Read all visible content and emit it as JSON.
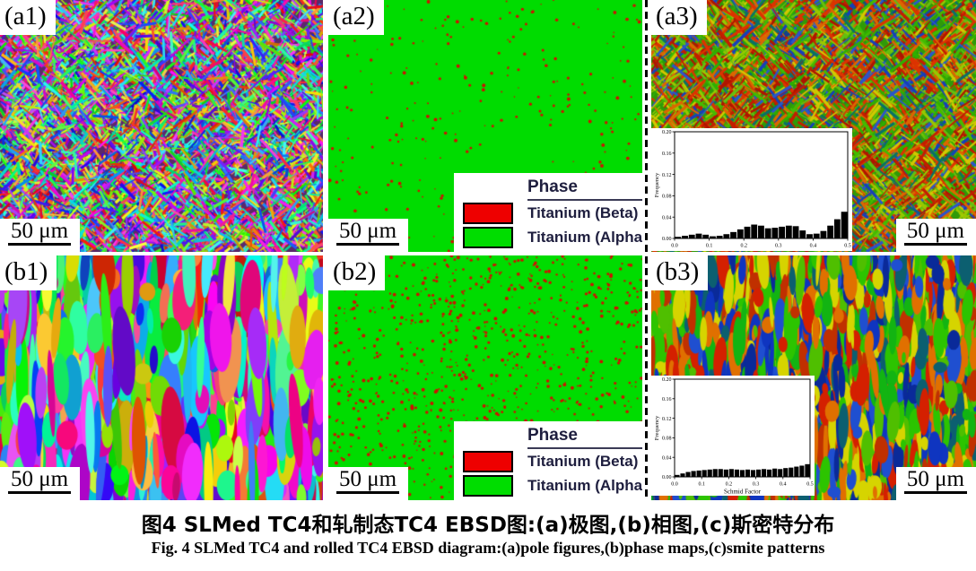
{
  "figure": {
    "caption_zh": "图4  SLMed TC4和轧制态TC4 EBSD图:(a)极图,(b)相图,(c)斯密特分布",
    "caption_en": "Fig. 4  SLMed TC4 and rolled TC4 EBSD diagram:(a)pole figures,(b)phase maps,(c)smite patterns"
  },
  "panels": {
    "a1": {
      "label": "(a1)",
      "scale_bar": "50 μm",
      "texture": {
        "kind": "acicular",
        "palette": "rainbow",
        "seed": 101
      }
    },
    "a2": {
      "label": "(a2)",
      "scale_bar": "50 μm",
      "texture": {
        "kind": "phase",
        "base_color": "#00dc00",
        "dot_color": "#d01000",
        "dots": 280,
        "seed": 55
      }
    },
    "a3": {
      "label": "(a3)",
      "scale_bar": "50 μm",
      "texture": {
        "kind": "acicular",
        "palette": "warm",
        "seed": 77
      }
    },
    "b1": {
      "label": "(b1)",
      "scale_bar": "50 μm",
      "texture": {
        "kind": "columnar",
        "palette": "rainbow",
        "seed": 23
      }
    },
    "b2": {
      "label": "(b2)",
      "scale_bar": "50 μm",
      "texture": {
        "kind": "phase",
        "base_color": "#00dc00",
        "dot_color": "#d01000",
        "dots": 950,
        "seed": 91
      }
    },
    "b3": {
      "label": "(b3)",
      "scale_bar": "50 μm",
      "texture": {
        "kind": "columnar",
        "palette": "warm2",
        "seed": 37
      }
    }
  },
  "legend": {
    "title": "Phase",
    "items": [
      {
        "label": "Titanium (Beta)",
        "color": "#ee0000"
      },
      {
        "label": "Titanium (Alpha)",
        "color": "#00dd00"
      }
    ]
  },
  "chart_data": [
    {
      "type": "bar",
      "panel": "a3",
      "title": "",
      "xlabel": "",
      "ylabel": "Frequency",
      "xlim": [
        0.0,
        0.5
      ],
      "ylim": [
        0.0,
        0.2
      ],
      "xticks": [
        "0.0",
        "0.1",
        "0.2",
        "0.3",
        "0.4",
        "0.5"
      ],
      "yticks": [
        "0.00",
        "0.04",
        "0.08",
        "0.12",
        "0.16",
        "0.20"
      ],
      "bin_width": 0.02,
      "x": [
        0.01,
        0.03,
        0.05,
        0.07,
        0.09,
        0.11,
        0.13,
        0.15,
        0.17,
        0.19,
        0.21,
        0.23,
        0.25,
        0.27,
        0.29,
        0.31,
        0.33,
        0.35,
        0.37,
        0.39,
        0.41,
        0.43,
        0.45,
        0.47,
        0.49
      ],
      "values": [
        0.003,
        0.005,
        0.007,
        0.009,
        0.007,
        0.004,
        0.005,
        0.008,
        0.012,
        0.017,
        0.022,
        0.026,
        0.024,
        0.019,
        0.02,
        0.022,
        0.024,
        0.023,
        0.015,
        0.008,
        0.009,
        0.014,
        0.024,
        0.036,
        0.05
      ]
    },
    {
      "type": "bar",
      "panel": "b3",
      "title": "",
      "xlabel": "Schmid Factor",
      "ylabel": "Frequency",
      "xlim": [
        0.0,
        0.5
      ],
      "ylim": [
        0.0,
        0.2
      ],
      "xticks": [
        "0.0",
        "0.1",
        "0.2",
        "0.3",
        "0.4",
        "0.5"
      ],
      "yticks": [
        "0.00",
        "0.04",
        "0.08",
        "0.12",
        "0.16",
        "0.20"
      ],
      "bin_width": 0.02,
      "x": [
        0.01,
        0.03,
        0.05,
        0.07,
        0.09,
        0.11,
        0.13,
        0.15,
        0.17,
        0.19,
        0.21,
        0.23,
        0.25,
        0.27,
        0.29,
        0.31,
        0.33,
        0.35,
        0.37,
        0.39,
        0.41,
        0.43,
        0.45,
        0.47,
        0.49
      ],
      "values": [
        0.004,
        0.007,
        0.01,
        0.012,
        0.013,
        0.014,
        0.015,
        0.016,
        0.016,
        0.015,
        0.016,
        0.015,
        0.014,
        0.015,
        0.014,
        0.015,
        0.016,
        0.015,
        0.017,
        0.016,
        0.018,
        0.019,
        0.021,
        0.023,
        0.026
      ]
    }
  ]
}
